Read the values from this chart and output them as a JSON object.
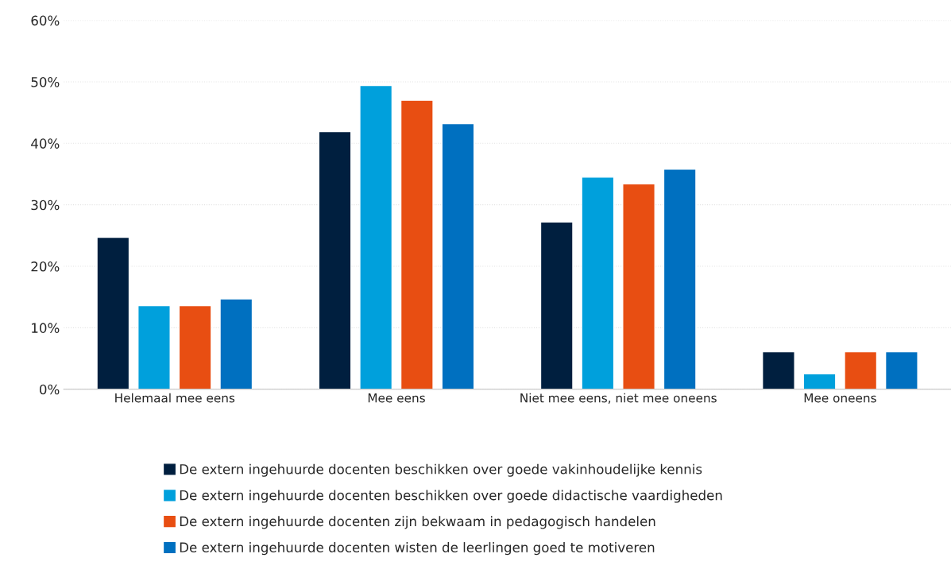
{
  "chart_data": {
    "type": "bar",
    "categories": [
      "Helemaal mee eens",
      "Mee eens",
      "Niet mee eens, niet mee oneens",
      "Mee oneens"
    ],
    "series": [
      {
        "name": "De extern ingehuurde docenten beschikken over goede vakinhoudelijke kennis",
        "color": "#001f3f",
        "values": [
          24.7,
          41.9,
          27.2,
          6.1
        ]
      },
      {
        "name": "De extern ingehuurde docenten beschikken over goede didactische vaardigheden",
        "color": "#00a0dc",
        "values": [
          13.6,
          49.4,
          34.5,
          2.5
        ]
      },
      {
        "name": "De extern ingehuurde docenten zijn bekwaam in pedagogisch handelen",
        "color": "#e84e12",
        "values": [
          13.6,
          47.0,
          33.4,
          6.1
        ]
      },
      {
        "name": "De extern ingehuurde docenten wisten de leerlingen goed te motiveren",
        "color": "#0070c0",
        "values": [
          14.7,
          43.2,
          35.8,
          6.1
        ]
      }
    ],
    "ylim": [
      0,
      60
    ],
    "yticks": [
      {
        "value": 0,
        "label": "0%"
      },
      {
        "value": 10,
        "label": "10%"
      },
      {
        "value": 20,
        "label": "20%"
      },
      {
        "value": 30,
        "label": "30%"
      },
      {
        "value": 40,
        "label": "40%"
      },
      {
        "value": 50,
        "label": "50%"
      },
      {
        "value": 60,
        "label": "60%"
      }
    ],
    "grid": "y",
    "legend": "bottom"
  }
}
